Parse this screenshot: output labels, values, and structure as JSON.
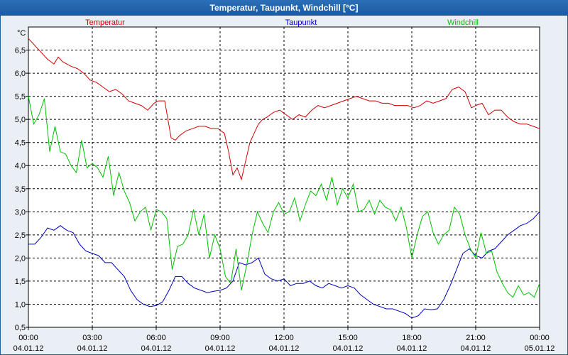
{
  "window_title": "Temperatur, Taupunkt, Windchill [°C]",
  "chart_data": {
    "type": "line",
    "title": "Temperatur, Taupunkt, Windchill [°C]",
    "ylabel": "°C",
    "xlabel": "",
    "ylim": [
      0.5,
      7.0
    ],
    "xlim": [
      0,
      24
    ],
    "y_ticks": [
      "0,5",
      "1,0",
      "1,5",
      "2,0",
      "2,5",
      "3,0",
      "3,5",
      "4,0",
      "4,5",
      "5,0",
      "5,5",
      "6,0",
      "6,5"
    ],
    "y_tick_values": [
      0.5,
      1.0,
      1.5,
      2.0,
      2.5,
      3.0,
      3.5,
      4.0,
      4.5,
      5.0,
      5.5,
      6.0,
      6.5
    ],
    "x_ticks": [
      {
        "time": "00:00",
        "date": "04.01.12",
        "h": 0
      },
      {
        "time": "03:00",
        "date": "04.01.12",
        "h": 3
      },
      {
        "time": "06:00",
        "date": "04.01.12",
        "h": 6
      },
      {
        "time": "09:00",
        "date": "04.01.12",
        "h": 9
      },
      {
        "time": "12:00",
        "date": "04.01.12",
        "h": 12
      },
      {
        "time": "15:00",
        "date": "04.01.12",
        "h": 15
      },
      {
        "time": "18:00",
        "date": "04.01.12",
        "h": 18
      },
      {
        "time": "21:00",
        "date": "04.01.12",
        "h": 21
      },
      {
        "time": "00:00",
        "date": "05.01.12",
        "h": 24
      }
    ],
    "grid": true,
    "series": [
      {
        "name": "Temperatur",
        "color": "#d40000",
        "x": [
          0,
          0.3,
          0.6,
          0.9,
          1.2,
          1.4,
          1.6,
          1.8,
          2.0,
          2.3,
          2.6,
          2.9,
          3.2,
          3.5,
          3.8,
          4.1,
          4.4,
          4.7,
          5.0,
          5.3,
          5.6,
          5.9,
          6.1,
          6.4,
          6.7,
          6.9,
          7.1,
          7.4,
          7.7,
          8.0,
          8.3,
          8.6,
          8.9,
          9.2,
          9.4,
          9.6,
          9.8,
          10.0,
          10.2,
          10.4,
          10.6,
          10.8,
          11.0,
          11.2,
          11.5,
          11.8,
          12.1,
          12.4,
          12.7,
          13.0,
          13.3,
          13.6,
          13.9,
          14.2,
          14.5,
          14.8,
          15.1,
          15.4,
          15.7,
          16.0,
          16.3,
          16.6,
          16.9,
          17.2,
          17.5,
          17.8,
          18.1,
          18.4,
          18.7,
          19.0,
          19.3,
          19.6,
          19.9,
          20.2,
          20.5,
          20.8,
          21.0,
          21.3,
          21.6,
          21.9,
          22.2,
          22.5,
          22.8,
          23.1,
          23.4,
          23.7,
          24.0
        ],
        "values": [
          6.75,
          6.6,
          6.45,
          6.3,
          6.2,
          6.35,
          6.25,
          6.2,
          6.15,
          6.1,
          6.0,
          5.85,
          5.8,
          5.7,
          5.6,
          5.65,
          5.55,
          5.4,
          5.35,
          5.3,
          5.2,
          5.35,
          5.4,
          5.4,
          4.6,
          4.55,
          4.65,
          4.75,
          4.8,
          4.85,
          4.85,
          4.8,
          4.8,
          4.7,
          4.3,
          3.8,
          3.95,
          3.7,
          4.1,
          4.5,
          4.7,
          4.9,
          5.0,
          5.05,
          5.15,
          5.2,
          5.1,
          5.0,
          5.1,
          5.05,
          5.2,
          5.3,
          5.25,
          5.3,
          5.35,
          5.4,
          5.45,
          5.5,
          5.45,
          5.4,
          5.4,
          5.35,
          5.35,
          5.3,
          5.3,
          5.3,
          5.25,
          5.3,
          5.4,
          5.35,
          5.4,
          5.45,
          5.65,
          5.7,
          5.6,
          5.25,
          5.3,
          5.35,
          5.1,
          5.2,
          5.2,
          5.05,
          4.95,
          4.9,
          4.9,
          4.85,
          4.8
        ]
      },
      {
        "name": "Taupunkt",
        "color": "#0000c0",
        "x": [
          0,
          0.3,
          0.6,
          0.9,
          1.2,
          1.5,
          1.8,
          2.1,
          2.4,
          2.7,
          3.0,
          3.3,
          3.6,
          3.9,
          4.2,
          4.5,
          4.8,
          5.1,
          5.4,
          5.7,
          6.0,
          6.3,
          6.6,
          6.9,
          7.2,
          7.5,
          7.8,
          8.1,
          8.4,
          8.7,
          9.0,
          9.3,
          9.6,
          9.9,
          10.2,
          10.5,
          10.8,
          11.1,
          11.4,
          11.7,
          12.0,
          12.3,
          12.6,
          12.9,
          13.2,
          13.5,
          13.8,
          14.1,
          14.4,
          14.7,
          15.0,
          15.3,
          15.6,
          15.9,
          16.2,
          16.5,
          16.8,
          17.1,
          17.4,
          17.7,
          18.0,
          18.3,
          18.6,
          18.9,
          19.2,
          19.5,
          19.8,
          20.1,
          20.4,
          20.7,
          21.0,
          21.3,
          21.6,
          21.9,
          22.2,
          22.5,
          22.8,
          23.1,
          23.4,
          23.7,
          24.0
        ],
        "values": [
          2.3,
          2.3,
          2.45,
          2.65,
          2.6,
          2.7,
          2.6,
          2.55,
          2.3,
          2.15,
          2.1,
          2.05,
          1.9,
          1.9,
          1.75,
          1.6,
          1.3,
          1.1,
          1.0,
          0.95,
          0.97,
          1.05,
          1.3,
          1.6,
          1.6,
          1.45,
          1.35,
          1.3,
          1.25,
          1.28,
          1.3,
          1.35,
          1.5,
          1.9,
          1.85,
          1.9,
          2.0,
          1.65,
          1.55,
          1.5,
          1.55,
          1.4,
          1.45,
          1.45,
          1.5,
          1.4,
          1.35,
          1.45,
          1.4,
          1.35,
          1.4,
          1.35,
          1.2,
          1.1,
          1.0,
          0.95,
          0.9,
          0.9,
          0.85,
          0.8,
          0.7,
          0.75,
          0.9,
          0.88,
          0.9,
          1.1,
          1.4,
          1.75,
          2.1,
          2.2,
          2.05,
          2.0,
          2.15,
          2.2,
          2.35,
          2.5,
          2.6,
          2.7,
          2.75,
          2.85,
          3.0
        ]
      },
      {
        "name": "Windchill",
        "color": "#00c000",
        "x": [
          0,
          0.25,
          0.5,
          0.75,
          1.0,
          1.25,
          1.5,
          1.75,
          2.0,
          2.25,
          2.5,
          2.75,
          3.0,
          3.25,
          3.5,
          3.75,
          4.0,
          4.25,
          4.5,
          4.75,
          5.0,
          5.25,
          5.5,
          5.75,
          6.0,
          6.25,
          6.5,
          6.75,
          7.0,
          7.25,
          7.5,
          7.75,
          8.0,
          8.25,
          8.5,
          8.75,
          9.0,
          9.25,
          9.5,
          9.75,
          10.0,
          10.25,
          10.5,
          10.75,
          11.0,
          11.25,
          11.5,
          11.75,
          12.0,
          12.25,
          12.5,
          12.75,
          13.0,
          13.25,
          13.5,
          13.75,
          14.0,
          14.25,
          14.5,
          14.75,
          15.0,
          15.25,
          15.5,
          15.75,
          16.0,
          16.25,
          16.5,
          16.75,
          17.0,
          17.25,
          17.5,
          17.75,
          18.0,
          18.25,
          18.5,
          18.75,
          19.0,
          19.25,
          19.5,
          19.75,
          20.0,
          20.25,
          20.5,
          20.75,
          21.0,
          21.25,
          21.5,
          21.75,
          22.0,
          22.25,
          22.5,
          22.75,
          23.0,
          23.25,
          23.5,
          23.75,
          24.0
        ],
        "values": [
          5.5,
          4.9,
          5.1,
          5.45,
          4.3,
          4.85,
          4.3,
          4.25,
          4.0,
          3.85,
          4.55,
          3.95,
          4.05,
          3.95,
          3.75,
          4.2,
          3.35,
          3.85,
          3.45,
          3.2,
          2.8,
          3.0,
          3.1,
          2.6,
          3.05,
          3.0,
          2.85,
          1.75,
          2.25,
          2.3,
          2.5,
          3.05,
          2.5,
          2.95,
          2.0,
          2.5,
          2.2,
          1.6,
          1.45,
          2.2,
          1.3,
          1.85,
          2.5,
          3.0,
          2.75,
          2.55,
          3.0,
          3.2,
          2.95,
          3.0,
          3.3,
          2.8,
          3.15,
          3.45,
          3.35,
          3.6,
          3.25,
          3.75,
          3.15,
          3.5,
          3.3,
          3.6,
          3.0,
          3.05,
          3.25,
          2.95,
          3.25,
          3.1,
          3.05,
          2.8,
          3.1,
          2.65,
          2.0,
          2.5,
          2.9,
          3.0,
          2.55,
          2.3,
          2.5,
          2.6,
          3.1,
          2.95,
          2.5,
          2.2,
          2.0,
          2.55,
          2.1,
          2.15,
          1.7,
          1.45,
          1.25,
          1.15,
          1.4,
          1.2,
          1.25,
          1.15,
          1.45
        ]
      }
    ]
  }
}
